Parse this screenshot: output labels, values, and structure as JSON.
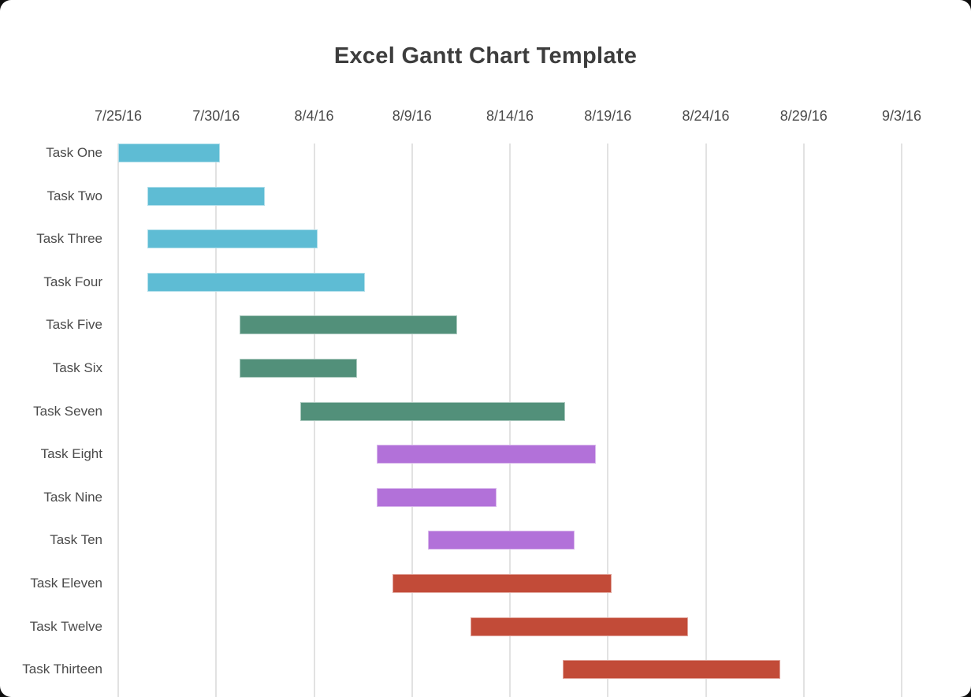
{
  "chart_data": {
    "type": "gantt",
    "title": "Excel Gantt Chart Template",
    "x_axis": {
      "tick_labels": [
        "7/25/16",
        "7/30/16",
        "8/4/16",
        "8/9/16",
        "8/14/16",
        "8/19/16",
        "8/24/16",
        "8/29/16",
        "9/3/16"
      ],
      "start_date": "7/25/16",
      "end_date": "9/3/16",
      "tick_interval_days": 5,
      "total_days": 40,
      "grid": true
    },
    "tasks": [
      {
        "label": "Task One",
        "color": "blue",
        "start_day": 0.0,
        "end_day": 5.2,
        "start": "7/25/16",
        "end": "7/30/16"
      },
      {
        "label": "Task Two",
        "color": "blue",
        "start_day": 1.5,
        "end_day": 7.5,
        "start": "7/26/16",
        "end": "8/1/16"
      },
      {
        "label": "Task Three",
        "color": "blue",
        "start_day": 1.5,
        "end_day": 10.2,
        "start": "7/26/16",
        "end": "8/4/16"
      },
      {
        "label": "Task Four",
        "color": "blue",
        "start_day": 1.5,
        "end_day": 12.6,
        "start": "7/26/16",
        "end": "8/6/16"
      },
      {
        "label": "Task Five",
        "color": "green",
        "start_day": 6.2,
        "end_day": 17.3,
        "start": "7/31/16",
        "end": "8/11/16"
      },
      {
        "label": "Task Six",
        "color": "green",
        "start_day": 6.2,
        "end_day": 12.2,
        "start": "7/31/16",
        "end": "8/6/16"
      },
      {
        "label": "Task Seven",
        "color": "green",
        "start_day": 9.3,
        "end_day": 22.8,
        "start": "8/3/16",
        "end": "8/17/16"
      },
      {
        "label": "Task Eight",
        "color": "purple",
        "start_day": 13.2,
        "end_day": 24.4,
        "start": "8/7/16",
        "end": "8/18/16"
      },
      {
        "label": "Task Nine",
        "color": "purple",
        "start_day": 13.2,
        "end_day": 19.3,
        "start": "8/7/16",
        "end": "8/13/16"
      },
      {
        "label": "Task Ten",
        "color": "purple",
        "start_day": 15.8,
        "end_day": 23.3,
        "start": "8/10/16",
        "end": "8/17/16"
      },
      {
        "label": "Task Eleven",
        "color": "red",
        "start_day": 14.0,
        "end_day": 25.2,
        "start": "8/8/16",
        "end": "8/19/16"
      },
      {
        "label": "Task Twelve",
        "color": "red",
        "start_day": 18.0,
        "end_day": 29.1,
        "start": "8/12/16",
        "end": "8/23/16"
      },
      {
        "label": "Task Thirteen",
        "color": "red",
        "start_day": 22.7,
        "end_day": 33.8,
        "start": "8/17/16",
        "end": "8/28/16"
      }
    ],
    "colors": {
      "blue": "#5ebcd4",
      "green": "#52907a",
      "purple": "#b271d9",
      "red": "#c24b38"
    },
    "style": {
      "title_color": "#3d3d3d",
      "label_color": "#4a4a4a",
      "gridline_color": "#e2e2e2",
      "background": "#ffffff"
    },
    "legend": "none"
  }
}
